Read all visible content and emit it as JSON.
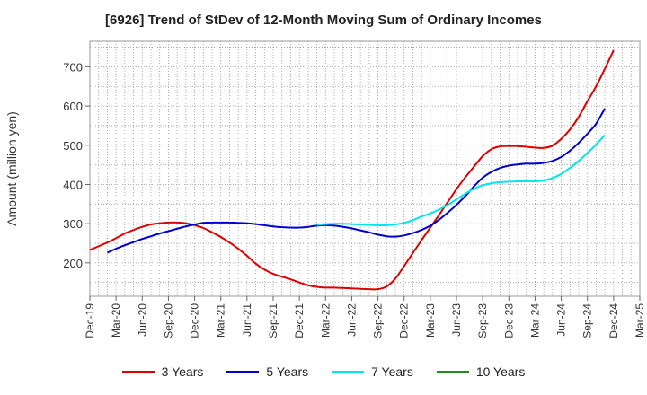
{
  "chart_data": {
    "type": "line",
    "title": "[6926]  Trend of StDev of 12-Month Moving Sum of Ordinary Incomes",
    "xlabel": "",
    "ylabel": "Amount (million yen)",
    "ylim": [
      115,
      765
    ],
    "y_ticks": [
      200,
      300,
      400,
      500,
      600,
      700
    ],
    "y_tick_labels": [
      "200",
      "300",
      "400",
      "500",
      "600",
      "700"
    ],
    "x_tick_labels": [
      "Dec-19",
      "Mar-20",
      "Jun-20",
      "Sep-20",
      "Dec-20",
      "Mar-21",
      "Jun-21",
      "Sep-21",
      "Dec-21",
      "Mar-22",
      "Jun-22",
      "Sep-22",
      "Dec-22",
      "Mar-23",
      "Jun-23",
      "Sep-23",
      "Dec-23",
      "Mar-24",
      "Jun-24",
      "Sep-24",
      "Dec-24",
      "Mar-25"
    ],
    "x_range_months": [
      0,
      63
    ],
    "grid": true,
    "legend_position": "bottom",
    "series": [
      {
        "name": "3 Years",
        "color": "#dd0000",
        "points": [
          [
            0,
            233
          ],
          [
            2,
            252
          ],
          [
            3,
            263
          ],
          [
            4,
            275
          ],
          [
            5,
            284
          ],
          [
            6,
            292
          ],
          [
            7,
            298
          ],
          [
            8,
            301
          ],
          [
            9,
            303
          ],
          [
            10,
            303
          ],
          [
            11,
            301
          ],
          [
            12,
            296
          ],
          [
            13,
            289
          ],
          [
            14,
            278
          ],
          [
            15,
            266
          ],
          [
            16,
            252
          ],
          [
            17,
            236
          ],
          [
            18,
            218
          ],
          [
            19,
            198
          ],
          [
            20,
            183
          ],
          [
            21,
            172
          ],
          [
            22,
            165
          ],
          [
            23,
            158
          ],
          [
            24,
            150
          ],
          [
            25,
            143
          ],
          [
            26,
            139
          ],
          [
            27,
            137
          ],
          [
            28,
            137
          ],
          [
            29,
            136
          ],
          [
            30,
            135
          ],
          [
            31,
            134
          ],
          [
            32,
            133
          ],
          [
            33,
            133
          ],
          [
            34,
            140
          ],
          [
            35,
            160
          ],
          [
            36,
            192
          ],
          [
            37,
            225
          ],
          [
            38,
            258
          ],
          [
            39,
            290
          ],
          [
            40,
            322
          ],
          [
            41,
            355
          ],
          [
            42,
            388
          ],
          [
            43,
            418
          ],
          [
            44,
            445
          ],
          [
            45,
            472
          ],
          [
            46,
            490
          ],
          [
            47,
            497
          ],
          [
            48,
            498
          ],
          [
            49,
            498
          ],
          [
            50,
            496
          ],
          [
            51,
            494
          ],
          [
            52,
            493
          ],
          [
            53,
            499
          ],
          [
            54,
            516
          ],
          [
            55,
            540
          ],
          [
            56,
            572
          ],
          [
            57,
            612
          ],
          [
            58,
            650
          ],
          [
            59,
            695
          ],
          [
            60,
            742
          ]
        ]
      },
      {
        "name": "5 Years",
        "color": "#0000cc",
        "points": [
          [
            2,
            226
          ],
          [
            3,
            236
          ],
          [
            4,
            245
          ],
          [
            5,
            253
          ],
          [
            6,
            261
          ],
          [
            7,
            268
          ],
          [
            8,
            275
          ],
          [
            9,
            281
          ],
          [
            10,
            287
          ],
          [
            11,
            293
          ],
          [
            12,
            298
          ],
          [
            13,
            302
          ],
          [
            14,
            303
          ],
          [
            15,
            303
          ],
          [
            16,
            303
          ],
          [
            17,
            302
          ],
          [
            18,
            301
          ],
          [
            19,
            299
          ],
          [
            20,
            296
          ],
          [
            21,
            293
          ],
          [
            22,
            291
          ],
          [
            23,
            290
          ],
          [
            24,
            290
          ],
          [
            25,
            292
          ],
          [
            26,
            295
          ],
          [
            27,
            296
          ],
          [
            28,
            295
          ],
          [
            29,
            292
          ],
          [
            30,
            288
          ],
          [
            31,
            283
          ],
          [
            32,
            278
          ],
          [
            33,
            272
          ],
          [
            34,
            268
          ],
          [
            35,
            267
          ],
          [
            36,
            270
          ],
          [
            37,
            276
          ],
          [
            38,
            284
          ],
          [
            39,
            295
          ],
          [
            40,
            310
          ],
          [
            41,
            328
          ],
          [
            42,
            348
          ],
          [
            43,
            370
          ],
          [
            44,
            395
          ],
          [
            45,
            417
          ],
          [
            46,
            432
          ],
          [
            47,
            442
          ],
          [
            48,
            448
          ],
          [
            49,
            451
          ],
          [
            50,
            453
          ],
          [
            51,
            453
          ],
          [
            52,
            455
          ],
          [
            53,
            460
          ],
          [
            54,
            470
          ],
          [
            55,
            486
          ],
          [
            56,
            506
          ],
          [
            57,
            529
          ],
          [
            58,
            555
          ],
          [
            59,
            594
          ]
        ]
      },
      {
        "name": "7 Years",
        "color": "#00e5ee",
        "points": [
          [
            26,
            297
          ],
          [
            27,
            299
          ],
          [
            28,
            300
          ],
          [
            29,
            300
          ],
          [
            30,
            299
          ],
          [
            31,
            298
          ],
          [
            32,
            297
          ],
          [
            33,
            296
          ],
          [
            34,
            296
          ],
          [
            35,
            298
          ],
          [
            36,
            302
          ],
          [
            37,
            309
          ],
          [
            38,
            318
          ],
          [
            39,
            326
          ],
          [
            40,
            336
          ],
          [
            41,
            348
          ],
          [
            42,
            362
          ],
          [
            43,
            376
          ],
          [
            44,
            389
          ],
          [
            45,
            398
          ],
          [
            46,
            403
          ],
          [
            47,
            406
          ],
          [
            48,
            407
          ],
          [
            49,
            408
          ],
          [
            50,
            408
          ],
          [
            51,
            408
          ],
          [
            52,
            410
          ],
          [
            53,
            416
          ],
          [
            54,
            427
          ],
          [
            55,
            442
          ],
          [
            56,
            460
          ],
          [
            57,
            480
          ],
          [
            58,
            502
          ],
          [
            59,
            526
          ]
        ]
      },
      {
        "name": "10 Years",
        "color": "#228b22",
        "points": []
      }
    ]
  }
}
